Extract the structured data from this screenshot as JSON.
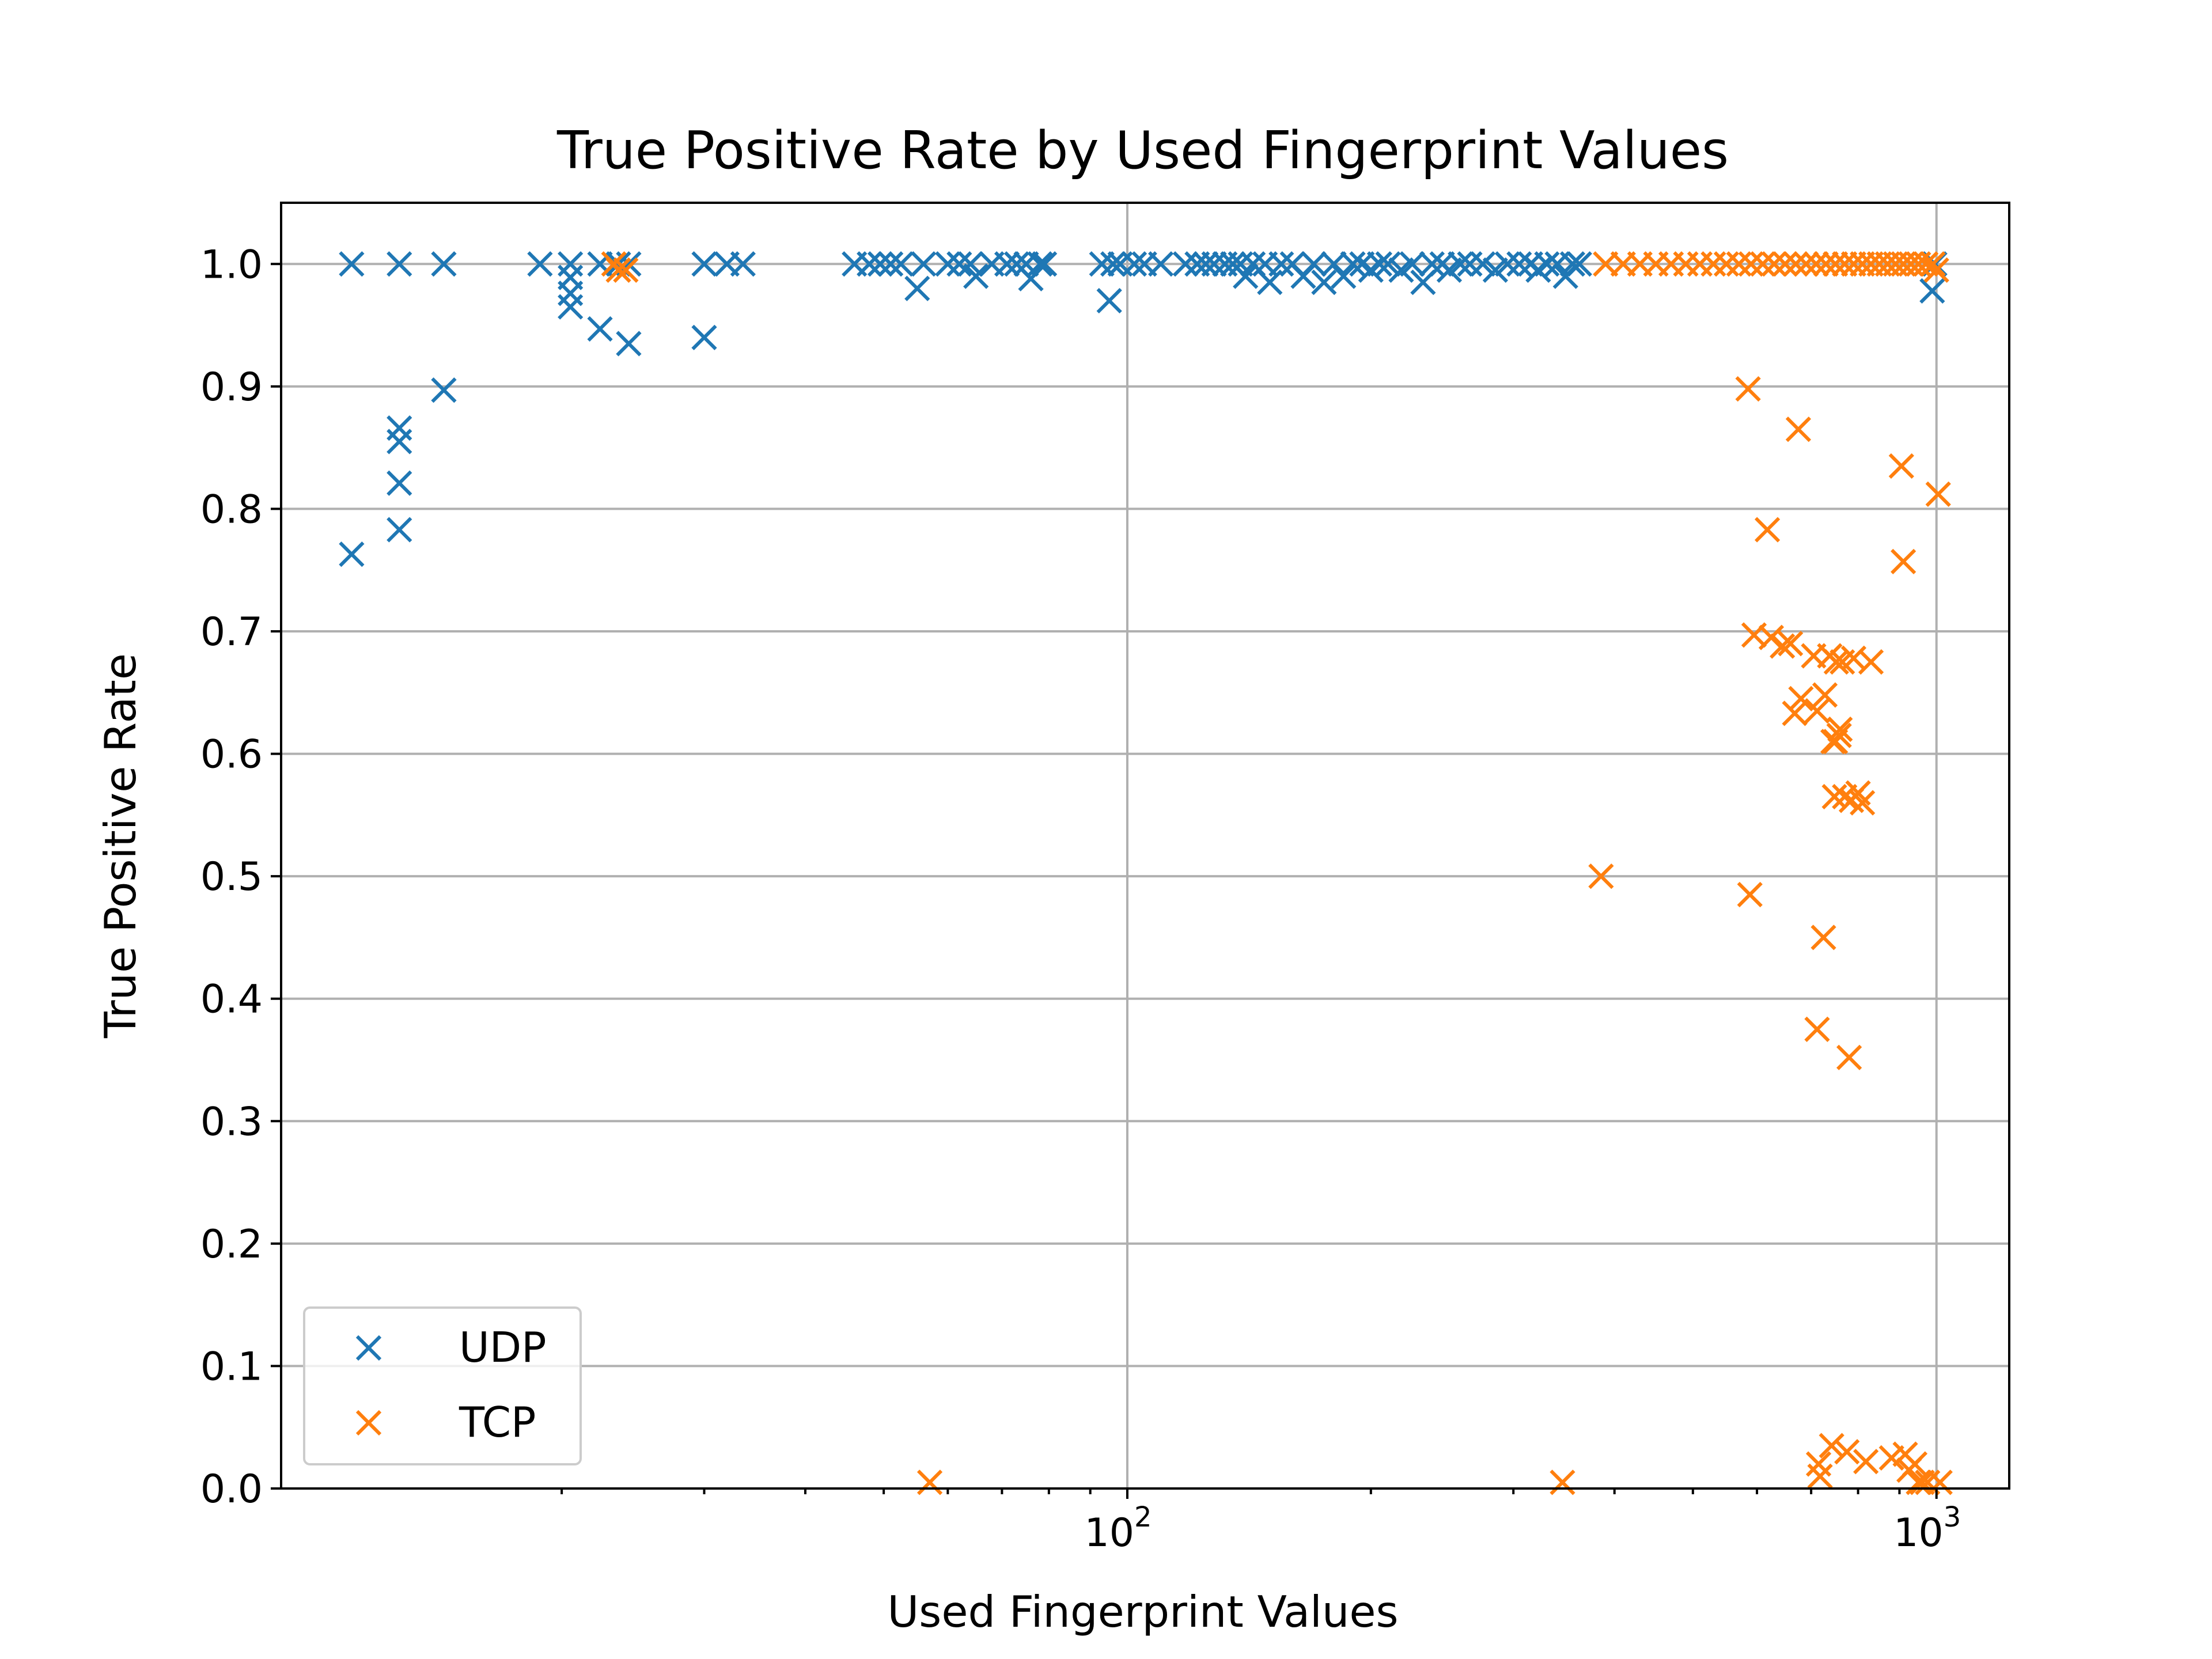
{
  "chart_data": {
    "type": "scatter",
    "title": "True Positive Rate by Used Fingerprint Values",
    "xlabel": "Used Fingerprint Values",
    "ylabel": "True Positive Rate",
    "xscale": "log",
    "xlim": [
      9,
      1230
    ],
    "ylim": [
      0.0,
      1.05
    ],
    "grid": true,
    "legend_position": "lower-left",
    "y_ticks": [
      "0.0",
      "0.1",
      "0.2",
      "0.3",
      "0.4",
      "0.5",
      "0.6",
      "0.7",
      "0.8",
      "0.9",
      "1.0"
    ],
    "x_ticks": [
      {
        "value": 100,
        "base": "10",
        "exp": "2"
      },
      {
        "value": 1000,
        "base": "10",
        "exp": "3"
      }
    ],
    "series": [
      {
        "name": "UDP",
        "color": "#1f77b4",
        "marker": "x",
        "points": [
          [
            11,
            1.0
          ],
          [
            11,
            0.763
          ],
          [
            12.6,
            1.0
          ],
          [
            12.6,
            0.866
          ],
          [
            12.6,
            0.855
          ],
          [
            12.6,
            0.821
          ],
          [
            12.6,
            0.783
          ],
          [
            14.3,
            1.0
          ],
          [
            14.3,
            0.897
          ],
          [
            18.8,
            1.0
          ],
          [
            20.5,
            1.0
          ],
          [
            20.5,
            0.989
          ],
          [
            20.5,
            0.976
          ],
          [
            20.5,
            0.965
          ],
          [
            22.3,
            1.0
          ],
          [
            22.3,
            0.947
          ],
          [
            23.5,
            1.0
          ],
          [
            24.2,
            1.0
          ],
          [
            24.2,
            0.935
          ],
          [
            30,
            1.0
          ],
          [
            30,
            0.94
          ],
          [
            32,
            1.0
          ],
          [
            33.5,
            1.0
          ],
          [
            46,
            1.0
          ],
          [
            48,
            1.0
          ],
          [
            49.5,
            1.0
          ],
          [
            51,
            1.0
          ],
          [
            52.5,
            1.0
          ],
          [
            55,
            0.98
          ],
          [
            56,
            1.0
          ],
          [
            60,
            1.0
          ],
          [
            62,
            1.0
          ],
          [
            64,
            1.0
          ],
          [
            65,
            0.99
          ],
          [
            68,
            1.0
          ],
          [
            71,
            1.0
          ],
          [
            73,
            1.0
          ],
          [
            75,
            1.0
          ],
          [
            76,
            0.988
          ],
          [
            78,
            1.0
          ],
          [
            79,
            1.0
          ],
          [
            93,
            1.0
          ],
          [
            95,
            0.97
          ],
          [
            96,
            1.0
          ],
          [
            98,
            1.0
          ],
          [
            102,
            1.0
          ],
          [
            105,
            1.0
          ],
          [
            110,
            1.0
          ],
          [
            118,
            1.0
          ],
          [
            122,
            1.0
          ],
          [
            125,
            1.0
          ],
          [
            128,
            1.0
          ],
          [
            132,
            1.0
          ],
          [
            135,
            1.0
          ],
          [
            138,
            1.0
          ],
          [
            140,
            0.99
          ],
          [
            143,
            1.0
          ],
          [
            148,
            1.0
          ],
          [
            150,
            0.985
          ],
          [
            155,
            1.0
          ],
          [
            160,
            1.0
          ],
          [
            165,
            0.99
          ],
          [
            170,
            1.0
          ],
          [
            175,
            0.985
          ],
          [
            180,
            1.0
          ],
          [
            185,
            0.99
          ],
          [
            190,
            1.0
          ],
          [
            195,
            1.0
          ],
          [
            200,
            0.995
          ],
          [
            205,
            1.0
          ],
          [
            210,
            1.0
          ],
          [
            218,
            0.995
          ],
          [
            225,
            1.0
          ],
          [
            232,
            0.985
          ],
          [
            238,
            1.0
          ],
          [
            245,
            1.0
          ],
          [
            250,
            0.995
          ],
          [
            258,
            1.0
          ],
          [
            265,
            1.0
          ],
          [
            275,
            1.0
          ],
          [
            285,
            0.995
          ],
          [
            295,
            1.0
          ],
          [
            305,
            1.0
          ],
          [
            315,
            1.0
          ],
          [
            322,
            0.995
          ],
          [
            330,
            1.0
          ],
          [
            340,
            1.0
          ],
          [
            348,
            0.99
          ],
          [
            355,
            1.0
          ],
          [
            362,
            1.0
          ],
          [
            988,
            0.978
          ],
          [
            995,
            1.0
          ]
        ]
      },
      {
        "name": "TCP",
        "color": "#ff7f0e",
        "marker": "x",
        "points": [
          [
            23.2,
            1.0
          ],
          [
            23.5,
            0.995
          ],
          [
            24.0,
            0.995
          ],
          [
            57,
            0.005
          ],
          [
            345,
            0.005
          ],
          [
            385,
            0.5
          ],
          [
            390,
            1.0
          ],
          [
            410,
            1.0
          ],
          [
            430,
            1.0
          ],
          [
            450,
            1.0
          ],
          [
            470,
            1.0
          ],
          [
            490,
            1.0
          ],
          [
            510,
            1.0
          ],
          [
            530,
            1.0
          ],
          [
            550,
            1.0
          ],
          [
            570,
            1.0
          ],
          [
            590,
            1.0
          ],
          [
            610,
            1.0
          ],
          [
            630,
            1.0
          ],
          [
            650,
            1.0
          ],
          [
            670,
            1.0
          ],
          [
            690,
            1.0
          ],
          [
            710,
            1.0
          ],
          [
            730,
            1.0
          ],
          [
            750,
            1.0
          ],
          [
            770,
            1.0
          ],
          [
            790,
            1.0
          ],
          [
            810,
            1.0
          ],
          [
            830,
            1.0
          ],
          [
            850,
            1.0
          ],
          [
            870,
            1.0
          ],
          [
            890,
            1.0
          ],
          [
            910,
            1.0
          ],
          [
            930,
            1.0
          ],
          [
            950,
            1.0
          ],
          [
            970,
            1.0
          ],
          [
            990,
            1.0
          ],
          [
            1000,
            0.995
          ],
          [
            585,
            0.898
          ],
          [
            588,
            0.485
          ],
          [
            595,
            0.697
          ],
          [
            618,
            0.783
          ],
          [
            625,
            0.695
          ],
          [
            645,
            0.688
          ],
          [
            660,
            0.69
          ],
          [
            668,
            0.633
          ],
          [
            675,
            0.865
          ],
          [
            680,
            0.645
          ],
          [
            705,
            0.68
          ],
          [
            712,
            0.635
          ],
          [
            712,
            0.375
          ],
          [
            715,
            0.02
          ],
          [
            718,
            0.01
          ],
          [
            725,
            0.45
          ],
          [
            728,
            0.648
          ],
          [
            738,
            0.68
          ],
          [
            742,
            0.035
          ],
          [
            745,
            0.61
          ],
          [
            748,
            0.565
          ],
          [
            750,
            0.61
          ],
          [
            752,
            0.675
          ],
          [
            758,
            0.615
          ],
          [
            760,
            0.62
          ],
          [
            765,
            0.675
          ],
          [
            770,
            0.565
          ],
          [
            775,
            0.03
          ],
          [
            780,
            0.352
          ],
          [
            785,
            0.562
          ],
          [
            790,
            0.678
          ],
          [
            800,
            0.568
          ],
          [
            810,
            0.56
          ],
          [
            818,
            0.022
          ],
          [
            830,
            0.675
          ],
          [
            880,
            0.025
          ],
          [
            905,
            0.835
          ],
          [
            910,
            0.757
          ],
          [
            915,
            0.028
          ],
          [
            925,
            0.015
          ],
          [
            940,
            0.02
          ],
          [
            950,
            0.005
          ],
          [
            960,
            0.005
          ],
          [
            975,
            0.005
          ],
          [
            1005,
            0.812
          ],
          [
            1010,
            0.005
          ]
        ]
      }
    ]
  }
}
